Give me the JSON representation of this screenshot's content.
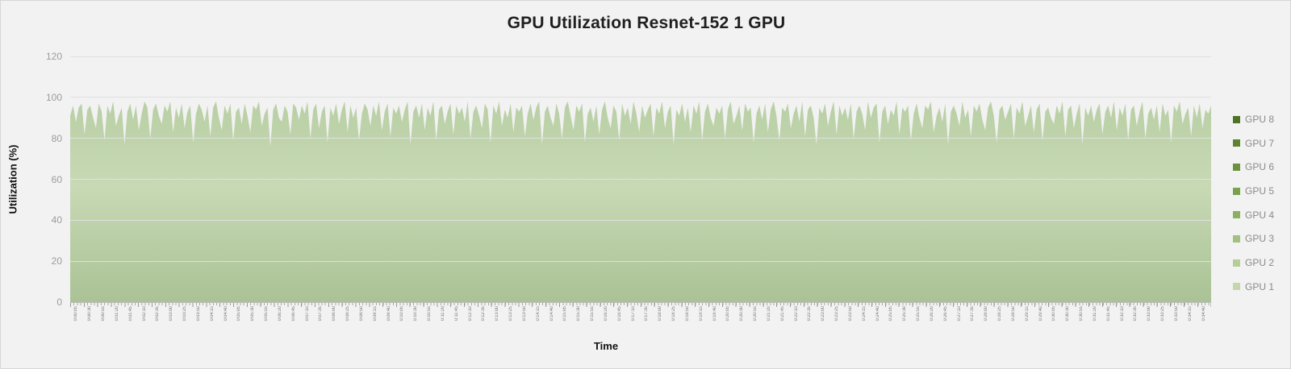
{
  "chart_data": {
    "type": "area",
    "title": "GPU Utilization Resnet-152 1 GPU",
    "xlabel": "Time",
    "ylabel": "Utilization (%)",
    "ylim": [
      0,
      120
    ],
    "y_ticks": [
      0,
      20,
      40,
      60,
      80,
      100,
      120
    ],
    "grid": "horizontal",
    "legend_position": "right",
    "legend": [
      {
        "label": "GPU 8",
        "color": "#4c7422"
      },
      {
        "label": "GPU 7",
        "color": "#5b8330"
      },
      {
        "label": "GPU 6",
        "color": "#6a923d"
      },
      {
        "label": "GPU 5",
        "color": "#7aa24c"
      },
      {
        "label": "GPU 4",
        "color": "#8bb05e"
      },
      {
        "label": "GPU 3",
        "color": "#a2c080"
      },
      {
        "label": "GPU 2",
        "color": "#b5cd99"
      },
      {
        "label": "GPU 1",
        "color": "#c5d6ab"
      }
    ],
    "x_labels": [
      "0:00:05",
      "0:00:30",
      "0:00:55",
      "0:01:20",
      "0:01:45",
      "0:02:10",
      "0:02:35",
      "0:03:00",
      "0:03:25",
      "0:03:50",
      "0:04:15",
      "0:04:40",
      "0:05:05",
      "0:05:30",
      "0:05:55",
      "0:06:20",
      "0:06:45",
      "0:07:10",
      "0:07:35",
      "0:08:00",
      "0:08:25",
      "0:08:50",
      "0:09:15",
      "0:09:40",
      "0:10:05",
      "0:10:30",
      "0:10:55",
      "0:11:20",
      "0:11:45",
      "0:12:10",
      "0:12:35",
      "0:13:00",
      "0:13:25",
      "0:13:50",
      "0:14:15",
      "0:14:40",
      "0:15:05",
      "0:15:30",
      "0:15:55",
      "0:16:20",
      "0:16:45",
      "0:17:10",
      "0:17:35",
      "0:18:00",
      "0:18:25",
      "0:18:50",
      "0:19:15",
      "0:19:40",
      "0:20:05",
      "0:20:30",
      "0:20:55",
      "0:21:20",
      "0:21:45",
      "0:22:10",
      "0:22:35",
      "0:23:00",
      "0:23:25",
      "0:23:50",
      "0:24:15",
      "0:24:40",
      "0:25:05",
      "0:25:30",
      "0:25:55",
      "0:26:20",
      "0:26:45",
      "0:27:10",
      "0:27:35",
      "0:28:00",
      "0:28:25",
      "0:28:50",
      "0:29:15",
      "0:29:40",
      "0:30:05",
      "0:30:30",
      "0:30:55",
      "0:31:20",
      "0:31:45",
      "0:32:10",
      "0:32:35",
      "0:33:00",
      "0:33:25",
      "0:33:50",
      "0:34:15",
      "0:34:40"
    ],
    "series": [
      {
        "name": "GPU 1",
        "color": "#c5d6ab",
        "area_gradient": [
          "#b8cfa4",
          "#c8d9b5",
          "#aac295"
        ],
        "values": [
          91,
          96,
          88,
          95,
          97,
          82,
          94,
          96,
          90,
          85,
          97,
          93,
          79,
          96,
          92,
          98,
          86,
          91,
          95,
          77,
          93,
          97,
          89,
          96,
          84,
          92,
          98,
          95,
          80,
          94,
          97,
          91,
          87,
          96,
          93,
          98,
          83,
          95,
          90,
          97,
          85,
          93,
          96,
          78,
          92,
          97,
          94,
          88,
          96,
          81,
          95,
          98,
          90,
          84,
          96,
          92,
          97,
          79,
          93,
          95,
          87,
          97,
          91,
          83,
          96,
          94,
          98,
          86,
          92,
          95,
          76,
          94,
          97,
          90,
          88,
          96,
          93,
          82,
          97,
          95,
          89,
          96,
          92,
          98,
          80,
          94,
          97,
          85,
          93,
          96,
          78,
          95,
          91,
          97,
          87,
          94,
          98,
          83,
          96,
          90,
          95,
          79,
          92,
          97,
          94,
          86,
          96,
          91,
          98,
          84,
          93,
          97,
          81,
          95,
          92,
          96,
          88,
          94,
          98,
          77,
          93,
          96,
          90,
          97,
          84,
          95,
          91,
          98,
          79,
          94,
          96,
          87,
          93,
          97,
          82,
          96,
          92,
          95,
          88,
          98,
          80,
          93,
          96,
          91,
          85,
          97,
          94,
          78,
          96,
          92,
          98,
          86,
          94,
          90,
          97,
          83,
          95,
          93,
          96,
          81,
          92,
          97,
          89,
          95,
          98,
          77,
          93,
          96,
          90,
          86,
          97,
          92,
          80,
          95,
          98,
          91,
          84,
          96,
          93,
          97,
          78,
          92,
          95,
          88,
          96,
          82,
          94,
          98,
          90,
          85,
          96,
          93,
          79,
          97,
          91,
          95,
          87,
          98,
          92,
          83,
          96,
          90,
          94,
          97,
          81,
          95,
          92,
          98,
          85,
          93,
          96,
          77,
          94,
          91,
          97,
          88,
          95,
          83,
          96,
          92,
          98,
          79,
          93,
          97,
          90,
          86,
          95,
          92,
          96,
          80,
          94,
          98,
          87,
          91,
          96,
          84,
          97,
          93,
          95,
          78,
          92,
          96,
          89,
          97,
          83,
          94,
          98,
          91,
          79,
          95,
          93,
          97,
          85,
          92,
          96,
          88,
          98,
          81,
          94,
          96,
          90,
          77,
          95,
          92,
          97,
          86,
          93,
          98,
          82,
          96,
          91,
          95,
          89,
          97,
          80,
          93,
          96,
          92,
          84,
          98,
          90,
          95,
          97,
          78,
          93,
          96,
          87,
          94,
          91,
          98,
          82,
          95,
          93,
          96,
          79,
          92,
          97,
          90,
          85,
          96,
          94,
          98,
          83,
          91,
          95,
          88,
          97,
          77,
          93,
          96,
          92,
          86,
          98,
          90,
          94,
          81,
          96,
          93,
          97,
          89,
          84,
          95,
          98,
          91,
          78,
          94,
          96,
          89,
          93,
          97,
          80,
          95,
          92,
          98,
          86,
          91,
          96,
          83,
          94,
          97,
          79,
          93,
          95,
          90,
          87,
          96,
          92,
          98,
          81,
          94,
          96,
          85,
          92,
          97,
          77,
          95,
          91,
          96,
          88,
          94,
          97,
          82,
          93,
          96,
          90,
          98,
          84,
          95,
          91,
          97,
          79,
          94,
          96,
          86,
          93,
          98,
          80,
          92,
          95,
          89,
          96,
          83,
          97,
          91,
          94,
          78,
          96,
          93,
          98,
          87,
          92,
          95,
          81,
          96,
          90,
          97,
          85,
          94,
          92,
          96
        ]
      }
    ]
  },
  "colors": {
    "background": "#f2f2f2",
    "border": "#d6d6d6",
    "gridline": "#e0e0e0",
    "axis_line": "#bdbdbd",
    "tick_label": "#9c9c9c",
    "title_text": "#1f1f1f",
    "legend_text": "#8a8a8a"
  }
}
